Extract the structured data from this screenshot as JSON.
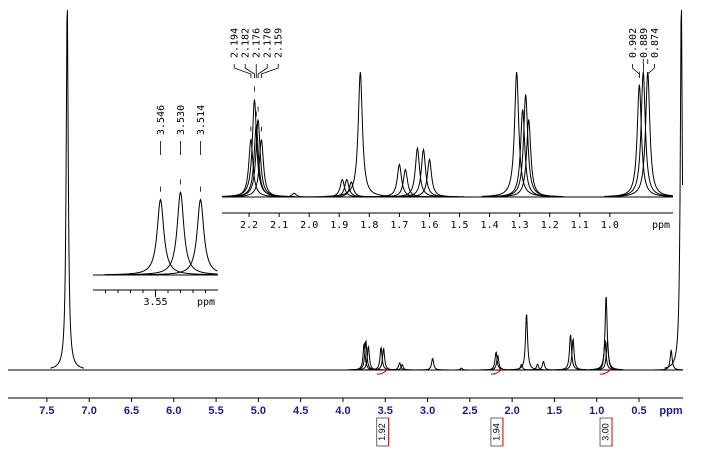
{
  "chart_data": [
    {
      "type": "spectrum",
      "xlabel": "ppm",
      "xlim": [
        7.96,
        -0.02
      ],
      "ylim": [
        0,
        100
      ],
      "xticks": [
        7.5,
        {
          "value": 7,
          "label": "7.0"
        },
        6.5,
        {
          "value": 6,
          "label": "6.0"
        },
        5.5,
        {
          "value": 5,
          "label": "5.0"
        },
        4.5,
        {
          "value": 4,
          "label": "4.0"
        },
        3.5,
        {
          "value": 3,
          "label": "3.0"
        },
        2.5,
        {
          "value": 2,
          "label": "2.0"
        },
        1.5,
        {
          "value": 1,
          "label": "1.0"
        },
        0.5
      ],
      "x": [
        7.26,
        3.75,
        3.73,
        3.7,
        3.55,
        3.52,
        3.33,
        3.3,
        2.94,
        2.6,
        2.19,
        2.17,
        1.89,
        1.83,
        1.7,
        1.63,
        1.31,
        1.28,
        0.902,
        0.889,
        0.874,
        0.12,
        0
      ],
      "values": [
        100,
        7.3,
        8,
        6.5,
        6.2,
        5.9,
        2,
        1.5,
        3.2,
        0.5,
        4.9,
        4,
        1.5,
        15.4,
        1.6,
        2.4,
        9.7,
        8.5,
        8,
        20.3,
        8,
        5.4,
        100
      ],
      "color": "#000000",
      "integrals": {
        "x": [
          3.53,
          2.18,
          0.89
        ],
        "values": [
          1.92,
          1.94,
          3
        ],
        "value_labels": [
          "1.92",
          "1.94",
          "3.00"
        ],
        "color": "#e00000"
      }
    },
    {
      "type": "spectrum",
      "xlabel": "ppm",
      "xlim": [
        3.6,
        3.5
      ],
      "ylim": [
        0,
        100
      ],
      "xticks": [
        3.55
      ],
      "minor_xticks": [
        3.59,
        3.58,
        3.57,
        3.56,
        3.54,
        3.53,
        3.52,
        3.51
      ],
      "x": [
        3.546,
        3.53,
        3.514
      ],
      "values": [
        52,
        57,
        52
      ],
      "color": "#000000",
      "peak_labels": [
        {
          "value": 3.546,
          "label": "3.546"
        },
        {
          "value": 3.53,
          "label": "3.530"
        },
        {
          "value": 3.514,
          "label": "3.514"
        }
      ]
    },
    {
      "type": "spectrum",
      "xlabel": "ppm",
      "xlim": [
        2.29,
        0.79
      ],
      "ylim": [
        0,
        100
      ],
      "xticks": [
        2.2,
        2.1,
        {
          "value": 2,
          "label": "2.0"
        },
        1.9,
        1.8,
        1.7,
        1.6,
        1.5,
        1.4,
        1.3,
        1.2,
        1.1,
        {
          "value": 1,
          "label": "1.0"
        }
      ],
      "x": [
        2.194,
        2.182,
        2.176,
        2.17,
        2.159,
        2.05,
        1.89,
        1.875,
        1.86,
        1.83,
        1.7,
        1.68,
        1.64,
        1.62,
        1.6,
        1.31,
        1.29,
        1.28,
        1.27,
        0.902,
        0.889,
        0.874
      ],
      "values": [
        46,
        78,
        58,
        62,
        46,
        3,
        14,
        14,
        12,
        100,
        26,
        22,
        39,
        38,
        30,
        100,
        70,
        82,
        62,
        90,
        100,
        100
      ],
      "color": "#000000",
      "peak_labels": [
        {
          "value": 2.194,
          "label": "2.194"
        },
        {
          "value": 2.182,
          "label": "2.182"
        },
        {
          "value": 2.176,
          "label": "2.176"
        },
        {
          "value": 2.17,
          "label": "2.170"
        },
        {
          "value": 2.159,
          "label": "2.159"
        },
        {
          "value": 0.902,
          "label": "0.902"
        },
        {
          "value": 0.889,
          "label": "0.889"
        },
        {
          "value": 0.874,
          "label": "0.874"
        }
      ]
    }
  ]
}
